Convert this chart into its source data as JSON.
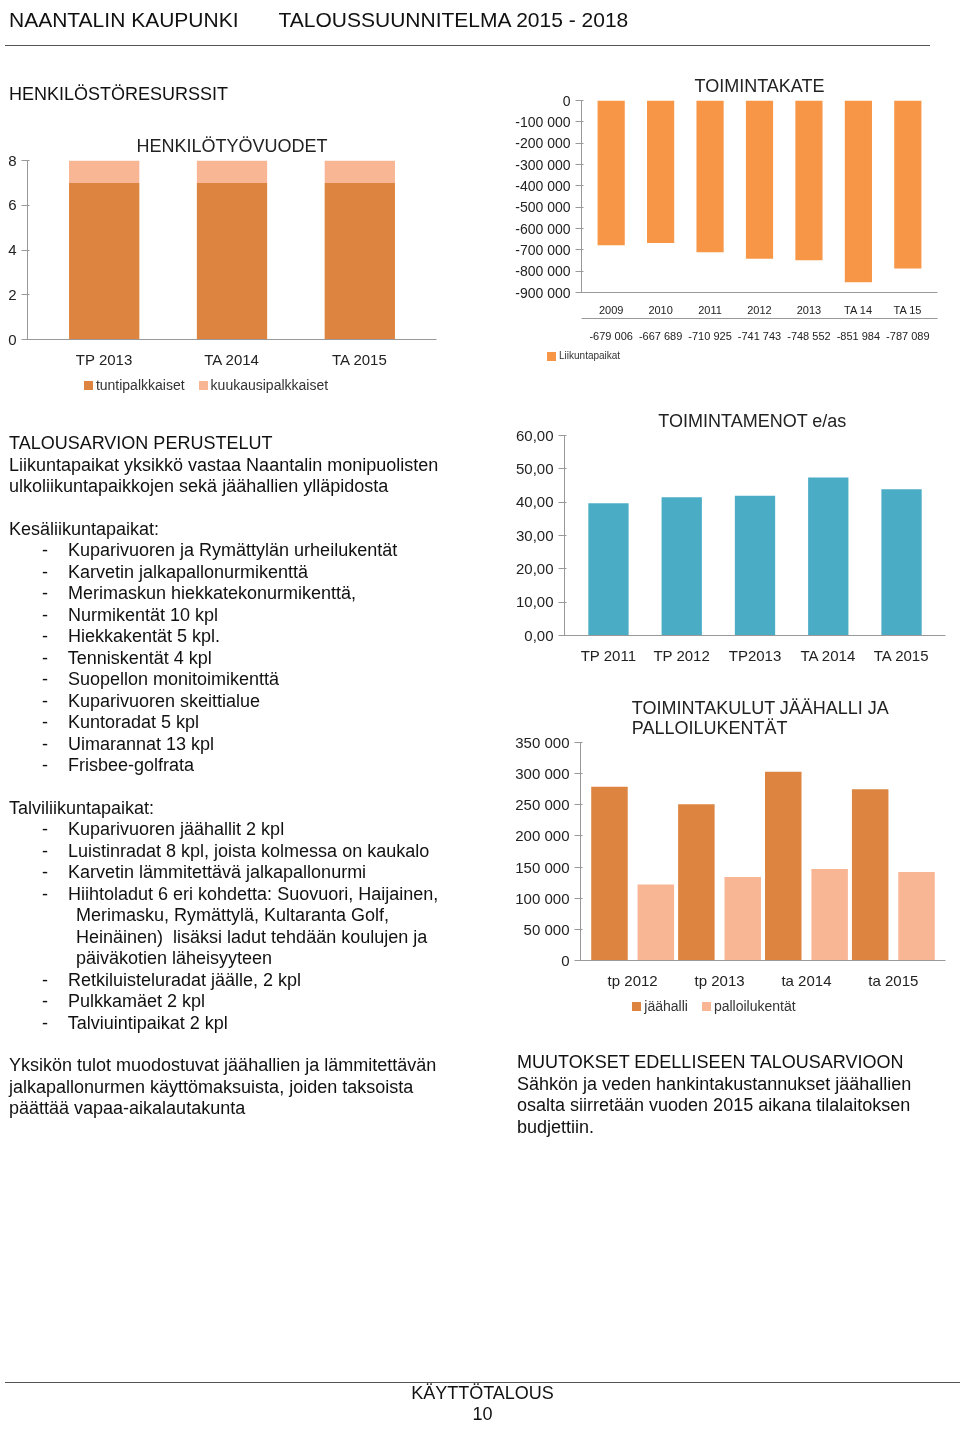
{
  "chart_data": [
    {
      "type": "other",
      "title": "NAANTALIN KAUPUNKI",
      "subtitle": "TALOUSSUUNNITELMA 2015 - 2018",
      "annotations": [
        "HENKILÖSTÖRESURSSIT"
      ]
    },
    {
      "type": "bar",
      "title": "HENKILÖTYÖVUODET",
      "categories": [
        "TP 2013",
        "TA 2014",
        "TA 2015"
      ],
      "stacked": true,
      "series": [
        {
          "name": "tuntipalkkaiset",
          "color": "#dd8440",
          "values": [
            7,
            7,
            7
          ]
        },
        {
          "name": "kuukausipalkkaiset",
          "color": "#f8b694",
          "values": [
            1,
            1,
            1
          ]
        }
      ],
      "ylim": [
        0,
        8
      ],
      "yticks": [
        0,
        2,
        4,
        6,
        8
      ],
      "grid": false,
      "legend": "bottom"
    },
    {
      "type": "bar",
      "title": "TOIMINTAKATE",
      "categories": [
        "2009",
        "2010",
        "2011",
        "2012",
        "2013",
        "TA 14",
        "TA 15"
      ],
      "series": [
        {
          "name": "Liikuntapaikat",
          "color": "#f79646",
          "values": [
            -679006,
            -667689,
            -710925,
            -741743,
            -748552,
            -851984,
            -787089
          ],
          "value_labels": [
            "-679 006",
            "-667 689",
            "-710 925",
            "-741 743",
            "-748 552",
            "-851 984",
            "-787 089"
          ]
        }
      ],
      "ylim": [
        -900000,
        0
      ],
      "yticks": [
        0,
        {
          "value": -100000,
          "label": "-100 000"
        },
        {
          "value": -200000,
          "label": "-200 000"
        },
        {
          "value": -300000,
          "label": "-300 000"
        },
        {
          "value": -400000,
          "label": "-400 000"
        },
        {
          "value": -500000,
          "label": "-500 000"
        },
        {
          "value": -600000,
          "label": "-600 000"
        },
        {
          "value": -700000,
          "label": "-700 000"
        },
        {
          "value": -800000,
          "label": "-800 000"
        },
        {
          "value": -900000,
          "label": "-900 000"
        }
      ],
      "grid": false,
      "legend": "bottom left"
    },
    {
      "type": "bar",
      "title": "TOIMINTAMENOT  e/as",
      "categories": [
        "TP 2011",
        "TP 2012",
        "TP2013",
        "TA 2014",
        "TA 2015"
      ],
      "values": [
        39.7,
        41.5,
        41.9,
        47.4,
        43.9
      ],
      "color": "#4bacc6",
      "ylim": [
        0,
        60
      ],
      "yticks": [
        {
          "value": 0,
          "label": "0,00"
        },
        {
          "value": 10,
          "label": "10,00"
        },
        {
          "value": 20,
          "label": "20,00"
        },
        {
          "value": 30,
          "label": "30,00"
        },
        {
          "value": 40,
          "label": "40,00"
        },
        {
          "value": 50,
          "label": "50,00"
        },
        {
          "value": 60,
          "label": "60,00"
        }
      ],
      "grid": false
    },
    {
      "type": "bar",
      "title": "TOIMINTAKULUT  JÄÄHALLI JA PALLOILUKENTÄT",
      "categories": [
        "tp 2012",
        "tp 2013",
        "ta 2014",
        "ta 2015"
      ],
      "series": [
        {
          "name": "jäähalli",
          "color": "#dd8440",
          "values": [
            279000,
            251000,
            303000,
            275000
          ]
        },
        {
          "name": "palloilukentät",
          "color": "#f8b694",
          "values": [
            122000,
            134000,
            147000,
            142000
          ]
        }
      ],
      "ylim": [
        0,
        350000
      ],
      "yticks": [
        0,
        {
          "value": 50000,
          "label": "50 000"
        },
        {
          "value": 100000,
          "label": "100 000"
        },
        {
          "value": 150000,
          "label": "150 000"
        },
        {
          "value": 200000,
          "label": "200 000"
        },
        {
          "value": 250000,
          "label": "250 000"
        },
        {
          "value": 300000,
          "label": "300 000"
        },
        {
          "value": 350000,
          "label": "350 000"
        }
      ],
      "grid": false,
      "legend": "bottom"
    },
    {
      "type": "other",
      "title": "TALOUSARVION PERUSTELUT",
      "annotations": [
        "Liikuntapaikat yksikkö vastaa Naantalin monipuolisten ulkoliikuntapaikkojen sekä jäähallien ylläpidosta",
        "Kesäliikuntapaikat:",
        "- Kuparivuoren ja Rymättylän urheilukentät",
        "- Karvetin jalkapallonurmikenttä",
        "- Merimaskun hiekkatekonurmikenttä,",
        "- Nurmikentät 10 kpl",
        "- Hiekkakentät 5 kpl.",
        "- Tenniskentät 4 kpl",
        "- Suopellon monitoimikenttä",
        "- Kuparivuoren skeittialue",
        "- Kuntoradat 5 kpl",
        "- Uimarannat 13 kpl",
        "- Frisbee-golfrata",
        "Talviliikuntapaikat:",
        "- Kuparivuoren jäähallit 2 kpl",
        "- Luistinradat 8 kpl, joista kolmessa on kaukalo",
        "- Karvetin lämmitettävä jalkapallonurmi",
        "- Hiihtoladut 6 eri kohdetta: Suovuori, Haijainen, Merimasku, Rymättylä, Kultaranta Golf, Heinäinen)  lisäksi ladut tehdään koulujen ja päiväkotien läheisyyteen",
        "- Retkiluisteluradat jäälle, 2 kpl",
        "- Pulkkamäet 2 kpl",
        "- Talviuintipaikat 2 kpl",
        "Yksikön tulot muodostuvat jäähallien ja lämmitettävän jalkapallonurmen käyttömaksuista, joiden taksoista päättää vapaa-aikalautakunta"
      ]
    },
    {
      "type": "other",
      "title": "MUUTOKSET EDELLISEEN TALOUSARVIOON",
      "annotations": [
        "Sähkön ja veden hankintakustannukset jäähallien osalta siirretään vuoden 2015 aikana tilalaitoksen budjettiin."
      ]
    },
    {
      "type": "other",
      "title": "KÄYTTÖTALOUS",
      "annotations": [
        "10"
      ]
    }
  ]
}
